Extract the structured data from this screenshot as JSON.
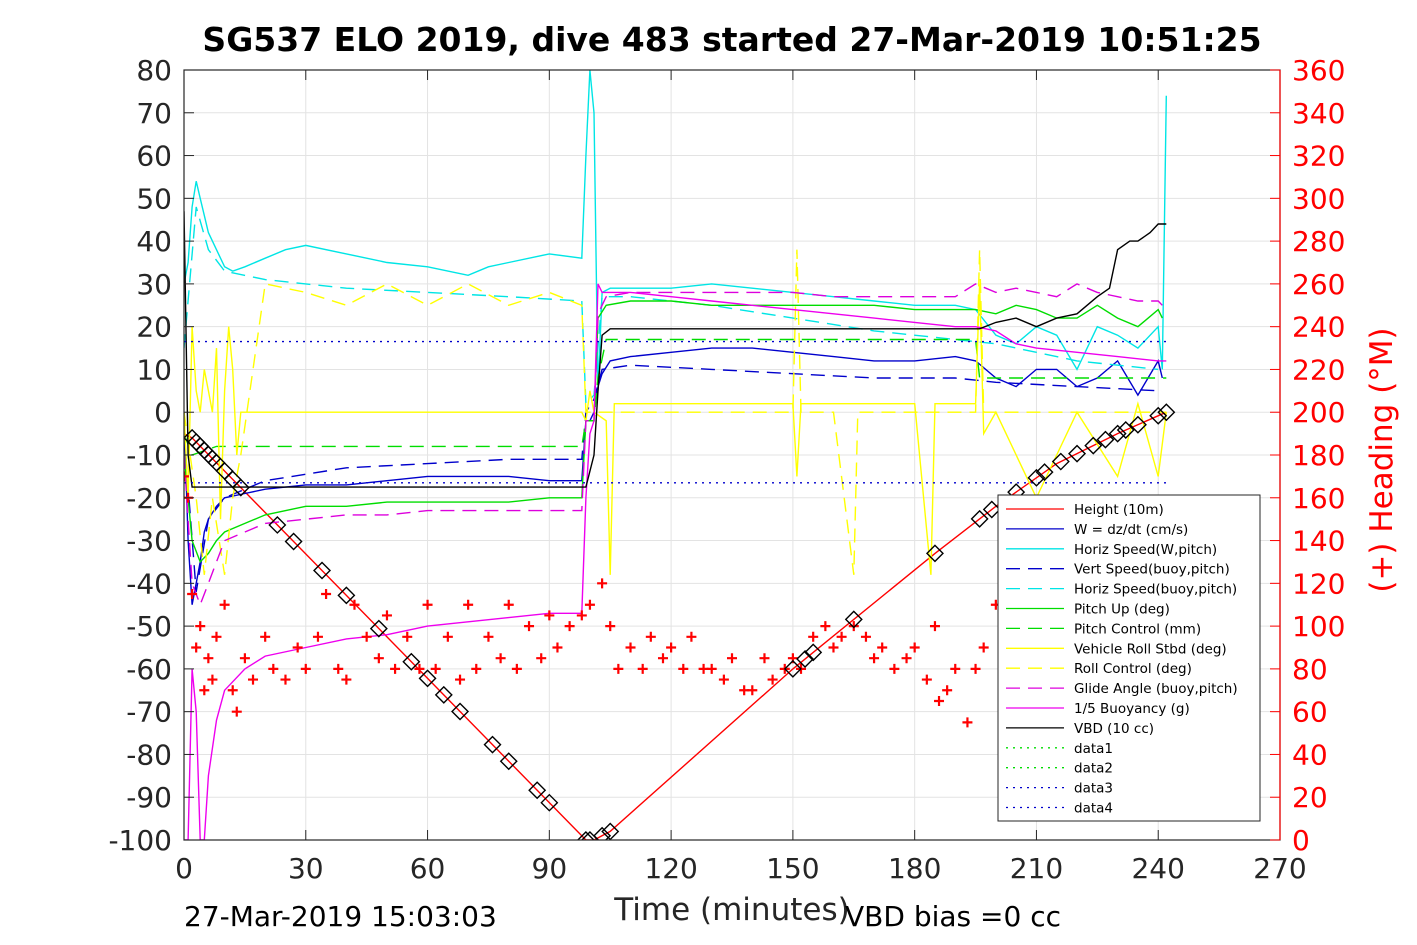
{
  "chart_data": {
    "type": "line",
    "title": "SG537 ELO 2019, dive 483 started 27-Mar-2019 10:51:25",
    "xlabel": "Time (minutes)",
    "ylabel_right": "(+) Heading (°M)",
    "xlim": [
      0,
      270
    ],
    "ylim": [
      -100,
      80
    ],
    "ylim_right": [
      0,
      360
    ],
    "xticks": [
      "0",
      "30",
      "60",
      "90",
      "120",
      "150",
      "180",
      "210",
      "240",
      "270"
    ],
    "yticks": [
      "80",
      "70",
      "60",
      "50",
      "40",
      "30",
      "20",
      "10",
      "0",
      "-10",
      "-20",
      "-30",
      "-40",
      "-50",
      "-60",
      "-70",
      "-80",
      "-90",
      "-100"
    ],
    "yticks_right": [
      "360",
      "340",
      "320",
      "300",
      "280",
      "260",
      "240",
      "220",
      "200",
      "180",
      "160",
      "140",
      "120",
      "100",
      "80",
      "60",
      "40",
      "20",
      "0"
    ],
    "grid": true,
    "legend_position": "lower-right",
    "footer_left": "27-Mar-2019 15:03:03",
    "footer_right": "VBD bias =0 cc",
    "series": [
      {
        "name": "Height (10m)",
        "color": "#ff0000",
        "style": "solid",
        "x": [
          0,
          2,
          99,
          101,
          105,
          150,
          185,
          200,
          215,
          230,
          242
        ],
        "y": [
          -5,
          -6,
          -100,
          -100,
          -98,
          -60,
          -33,
          -22,
          -12,
          -5,
          0
        ]
      },
      {
        "name": "W = dz/dt (cm/s)",
        "color": "#0000cc",
        "style": "solid",
        "x": [
          0,
          1,
          2,
          3,
          4,
          5,
          6,
          8,
          10,
          15,
          20,
          30,
          40,
          50,
          60,
          70,
          80,
          90,
          98,
          99,
          100,
          101,
          102,
          103,
          105,
          110,
          120,
          130,
          140,
          150,
          160,
          170,
          180,
          190,
          195,
          200,
          205,
          210,
          215,
          220,
          225,
          230,
          235,
          240,
          241
        ],
        "y": [
          0,
          -30,
          -45,
          -40,
          -35,
          -28,
          -25,
          -22,
          -20,
          -19,
          -18,
          -17,
          -17,
          -16,
          -15,
          -15,
          -15,
          -16,
          -16,
          -2,
          -2,
          0,
          6,
          9,
          12,
          13,
          14,
          15,
          15,
          14,
          13,
          12,
          12,
          13,
          12,
          8,
          6,
          10,
          10,
          6,
          8,
          12,
          4,
          12,
          8
        ]
      },
      {
        "name": "Horiz Speed(W,pitch)",
        "color": "#00e5e5",
        "style": "solid",
        "x": [
          0,
          1,
          2,
          3,
          4,
          5,
          6,
          8,
          10,
          12,
          15,
          20,
          25,
          30,
          40,
          50,
          60,
          70,
          75,
          80,
          90,
          98,
          99,
          100,
          101,
          102,
          103,
          105,
          110,
          120,
          130,
          140,
          150,
          160,
          170,
          180,
          190,
          195,
          200,
          205,
          210,
          215,
          220,
          225,
          230,
          235,
          240,
          241,
          242
        ],
        "y": [
          30,
          35,
          48,
          54,
          50,
          46,
          42,
          38,
          34,
          33,
          34,
          36,
          38,
          39,
          37,
          35,
          34,
          32,
          34,
          35,
          37,
          36,
          60,
          80,
          70,
          5,
          28,
          29,
          29,
          29,
          30,
          29,
          28,
          27,
          26,
          25,
          25,
          24,
          18,
          16,
          20,
          18,
          10,
          20,
          18,
          15,
          20,
          10,
          74
        ]
      },
      {
        "name": "Vert Speed(buoy,pitch)",
        "color": "#0000cc",
        "style": "dashed",
        "x": [
          0,
          3,
          6,
          10,
          20,
          40,
          60,
          80,
          98,
          99,
          101,
          103,
          110,
          130,
          150,
          170,
          190,
          200,
          220,
          240
        ],
        "y": [
          -5,
          -42,
          -25,
          -20,
          -16,
          -13,
          -12,
          -11,
          -11,
          0,
          3,
          10,
          11,
          10,
          9,
          8,
          8,
          7,
          6,
          5
        ]
      },
      {
        "name": "Horiz Speed(buoy,pitch)",
        "color": "#00e5e5",
        "style": "dashed",
        "x": [
          0,
          3,
          6,
          10,
          20,
          40,
          60,
          80,
          98,
          99,
          101,
          103,
          110,
          130,
          150,
          170,
          190,
          200,
          210,
          220,
          240
        ],
        "y": [
          15,
          48,
          38,
          33,
          31,
          29,
          28,
          27,
          26,
          2,
          4,
          27,
          27,
          25,
          22,
          19,
          17,
          16,
          14,
          12,
          10
        ]
      },
      {
        "name": "Pitch Up (deg)",
        "color": "#00dd00",
        "style": "solid",
        "x": [
          0,
          2,
          4,
          6,
          8,
          10,
          15,
          20,
          30,
          40,
          50,
          60,
          70,
          80,
          90,
          98,
          99,
          101,
          102,
          104,
          110,
          120,
          130,
          140,
          150,
          160,
          170,
          180,
          190,
          195,
          200,
          205,
          210,
          215,
          220,
          225,
          230,
          235,
          240,
          241
        ],
        "y": [
          -10,
          -30,
          -35,
          -33,
          -30,
          -28,
          -26,
          -24,
          -22,
          -22,
          -21,
          -21,
          -21,
          -21,
          -20,
          -20,
          -2,
          -2,
          22,
          25,
          26,
          26,
          25,
          25,
          25,
          25,
          25,
          24,
          24,
          24,
          23,
          25,
          24,
          22,
          22,
          25,
          22,
          20,
          24,
          22
        ]
      },
      {
        "name": "Pitch Control (mm)",
        "color": "#00dd00",
        "style": "dashed",
        "x": [
          0,
          2,
          5,
          8,
          12,
          98,
          99,
          101,
          102,
          104,
          195,
          196,
          242
        ],
        "y": [
          -5,
          -10,
          -9,
          -8,
          -8,
          -8,
          -2,
          -2,
          8,
          17,
          17,
          8,
          8
        ]
      },
      {
        "name": "Vehicle Roll Stbd (deg)",
        "color": "#ffff00",
        "style": "solid",
        "x": [
          0,
          1,
          2,
          3,
          4,
          5,
          6,
          7,
          8,
          9,
          10,
          11,
          12,
          13,
          14,
          15,
          20,
          30,
          40,
          50,
          60,
          70,
          80,
          90,
          98,
          99,
          100,
          101,
          104,
          105,
          106,
          110,
          120,
          130,
          140,
          150,
          151,
          152,
          160,
          170,
          180,
          184,
          185,
          186,
          190,
          195,
          196,
          197,
          200,
          210,
          220,
          230,
          235,
          240,
          242
        ],
        "y": [
          0,
          -20,
          20,
          5,
          0,
          10,
          5,
          0,
          15,
          -25,
          5,
          20,
          10,
          -10,
          0,
          0,
          0,
          0,
          0,
          0,
          0,
          0,
          0,
          0,
          0,
          -2,
          5,
          0,
          -2,
          -38,
          2,
          2,
          2,
          2,
          2,
          2,
          -15,
          2,
          2,
          2,
          2,
          -38,
          2,
          2,
          2,
          2,
          30,
          -5,
          0,
          -20,
          0,
          -15,
          2,
          -15,
          0
        ]
      },
      {
        "name": "Roll Control (deg)",
        "color": "#ffff00",
        "style": "dashed",
        "x": [
          0,
          3,
          5,
          7,
          10,
          12,
          14,
          20,
          30,
          40,
          50,
          60,
          70,
          80,
          90,
          98,
          99,
          101,
          103,
          106,
          110,
          130,
          150,
          151,
          152,
          160,
          165,
          166,
          170,
          190,
          195,
          196,
          197,
          200,
          210,
          220,
          230,
          240,
          242
        ],
        "y": [
          0,
          -20,
          -38,
          -20,
          -38,
          -20,
          -10,
          30,
          28,
          25,
          30,
          25,
          30,
          25,
          28,
          25,
          0,
          0,
          0,
          0,
          0,
          0,
          0,
          38,
          0,
          0,
          -38,
          0,
          0,
          0,
          0,
          38,
          0,
          0,
          0,
          0,
          0,
          0,
          0
        ]
      },
      {
        "name": "Glide Angle (buoy,pitch)",
        "color": "#dd00dd",
        "style": "dashed",
        "x": [
          0,
          2,
          4,
          6,
          8,
          10,
          15,
          20,
          30,
          40,
          50,
          60,
          70,
          80,
          90,
          98,
          99,
          101,
          102,
          104,
          110,
          120,
          130,
          140,
          150,
          160,
          170,
          180,
          190,
          195,
          200,
          205,
          210,
          215,
          220,
          225,
          230,
          235,
          240,
          241
        ],
        "y": [
          -10,
          -40,
          -45,
          -40,
          -35,
          -30,
          -28,
          -26,
          -25,
          -24,
          -24,
          -23,
          -23,
          -23,
          -23,
          -23,
          -2,
          -2,
          23,
          27,
          28,
          28,
          28,
          28,
          28,
          27,
          27,
          27,
          27,
          30,
          28,
          29,
          28,
          27,
          30,
          28,
          27,
          26,
          26,
          25
        ]
      },
      {
        "name": "1/5 Buoyancy (g)",
        "color": "#ee00ee",
        "style": "solid",
        "x": [
          0,
          1,
          2,
          3,
          4,
          5,
          6,
          8,
          10,
          15,
          20,
          30,
          40,
          50,
          60,
          70,
          80,
          90,
          98,
          99,
          100,
          101,
          102,
          103,
          110,
          120,
          130,
          140,
          150,
          160,
          170,
          180,
          190,
          195,
          200,
          205,
          210,
          220,
          230,
          240,
          242
        ],
        "y": [
          -100,
          -100,
          -60,
          -70,
          -100,
          -100,
          -85,
          -72,
          -65,
          -60,
          -57,
          -55,
          -53,
          -52,
          -50,
          -49,
          -48,
          -47,
          -47,
          -20,
          -5,
          -2,
          30,
          28,
          28,
          27,
          26,
          25,
          24,
          23,
          22,
          21,
          20,
          20,
          19,
          16,
          15,
          14,
          13,
          12,
          12
        ]
      },
      {
        "name": "VBD (10 cc)",
        "color": "#000000",
        "style": "solid",
        "x": [
          0,
          1,
          2,
          98,
          99,
          101,
          102,
          103,
          105,
          196,
          200,
          205,
          210,
          215,
          220,
          225,
          228,
          230,
          233,
          235,
          238,
          240,
          242
        ],
        "y": [
          47,
          -10,
          -17.5,
          -17.5,
          -17.5,
          -10,
          5,
          18,
          19.5,
          19.5,
          21,
          22,
          20,
          22,
          23,
          27,
          29,
          38,
          40,
          40,
          42,
          44,
          44
        ]
      },
      {
        "name": "data1",
        "color": "#00dd00",
        "style": "dotted",
        "x": [],
        "y": []
      },
      {
        "name": "data2",
        "color": "#00dd00",
        "style": "dotted",
        "x": [],
        "y": []
      },
      {
        "name": "data3",
        "color": "#0000cc",
        "style": "dotted",
        "x": [
          0,
          242
        ],
        "y": [
          16.5,
          16.5
        ]
      },
      {
        "name": "data4",
        "color": "#0000cc",
        "style": "dotted",
        "x": [
          0,
          242
        ],
        "y": [
          -16.5,
          -16.5
        ]
      }
    ],
    "heading": {
      "color": "#ff0000",
      "marker": "+",
      "axis": "right",
      "x": [
        0,
        1,
        2,
        3,
        4,
        5,
        6,
        7,
        8,
        10,
        12,
        13,
        15,
        17,
        20,
        22,
        25,
        28,
        30,
        33,
        35,
        38,
        40,
        42,
        45,
        48,
        50,
        52,
        55,
        58,
        60,
        62,
        65,
        68,
        70,
        72,
        75,
        78,
        80,
        82,
        85,
        88,
        90,
        92,
        95,
        98,
        100,
        103,
        105,
        107,
        110,
        113,
        115,
        118,
        120,
        123,
        125,
        128,
        130,
        133,
        135,
        138,
        140,
        143,
        145,
        148,
        150,
        152,
        155,
        158,
        160,
        162,
        165,
        168,
        170,
        172,
        175,
        178,
        180,
        183,
        185,
        186,
        188,
        190,
        193,
        195,
        197,
        200
      ],
      "y": [
        170,
        160,
        115,
        90,
        100,
        70,
        85,
        75,
        95,
        110,
        70,
        60,
        85,
        75,
        95,
        80,
        75,
        90,
        80,
        95,
        115,
        80,
        75,
        110,
        95,
        85,
        105,
        80,
        95,
        80,
        110,
        80,
        95,
        75,
        110,
        80,
        95,
        85,
        110,
        80,
        100,
        85,
        105,
        90,
        100,
        105,
        110,
        120,
        100,
        80,
        90,
        80,
        95,
        85,
        90,
        80,
        95,
        80,
        80,
        75,
        85,
        70,
        70,
        85,
        75,
        80,
        85,
        80,
        95,
        100,
        90,
        95,
        100,
        95,
        85,
        90,
        80,
        85,
        90,
        75,
        100,
        65,
        70,
        80,
        55,
        80,
        90,
        110
      ]
    },
    "diamonds_on": "Height (10m)",
    "diamond_x": [
      2,
      3,
      4,
      5,
      6,
      7,
      8,
      10,
      12,
      14,
      23,
      27,
      34,
      40,
      48,
      56,
      60,
      64,
      68,
      76,
      80,
      87,
      90,
      99,
      100,
      103,
      105,
      150,
      153,
      155,
      165,
      185,
      196,
      199,
      205,
      210,
      212,
      216,
      220,
      224,
      227,
      230,
      232,
      235,
      240,
      242
    ]
  }
}
